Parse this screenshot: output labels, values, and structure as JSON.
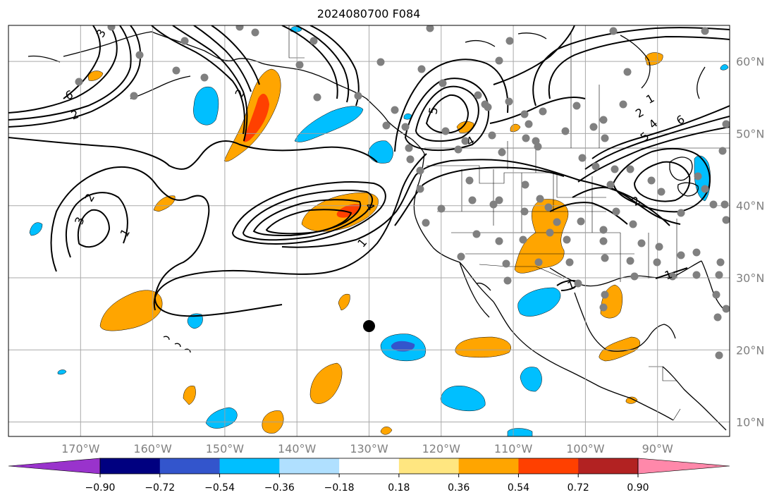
{
  "title": "2024080700 F084",
  "map": {
    "lon_range": [
      -180,
      -80
    ],
    "lat_range": [
      8,
      65
    ],
    "projection": "PlateCarree",
    "grid": true,
    "lon_ticks": [
      {
        "value": -170,
        "label": "170°W"
      },
      {
        "value": -160,
        "label": "160°W"
      },
      {
        "value": -150,
        "label": "150°W"
      },
      {
        "value": -140,
        "label": "140°W"
      },
      {
        "value": -130,
        "label": "130°W"
      },
      {
        "value": -120,
        "label": "120°W"
      },
      {
        "value": -110,
        "label": "110°W"
      },
      {
        "value": -100,
        "label": "100°W"
      },
      {
        "value": -90,
        "label": "90°W"
      }
    ],
    "lat_ticks": [
      {
        "value": 60,
        "label": "60°N"
      },
      {
        "value": 50,
        "label": "50°N"
      },
      {
        "value": 40,
        "label": "40°N"
      },
      {
        "value": 30,
        "label": "30°N"
      },
      {
        "value": 20,
        "label": "20°N"
      },
      {
        "value": 10,
        "label": "10°N"
      }
    ]
  },
  "colorbar": {
    "levels": [
      "−0.90",
      "−0.72",
      "−0.54",
      "−0.36",
      "−0.18",
      "0.18",
      "0.36",
      "0.54",
      "0.72",
      "0.90"
    ],
    "colors": [
      "#9933cc",
      "#000080",
      "#3355cc",
      "#00bfff",
      "#b0e0ff",
      "#ffffff",
      "#ffe680",
      "#ffa500",
      "#ff4000",
      "#b22222",
      "#ff88aa"
    ],
    "extend": "both"
  },
  "contour_labels": [
    "1",
    "2",
    "3",
    "4",
    "5",
    "6"
  ],
  "markers": {
    "target_point": {
      "lon": -130,
      "lat": 23.3,
      "color": "#000000"
    },
    "station_color": "#808080"
  },
  "colors": {
    "orange": "#ffa500",
    "red": "#ff4000",
    "cyan": "#00bfff",
    "light_blue": "#b0e0ff",
    "blue": "#3355cc",
    "grid": "#a0a0a0",
    "station": "#808080"
  }
}
